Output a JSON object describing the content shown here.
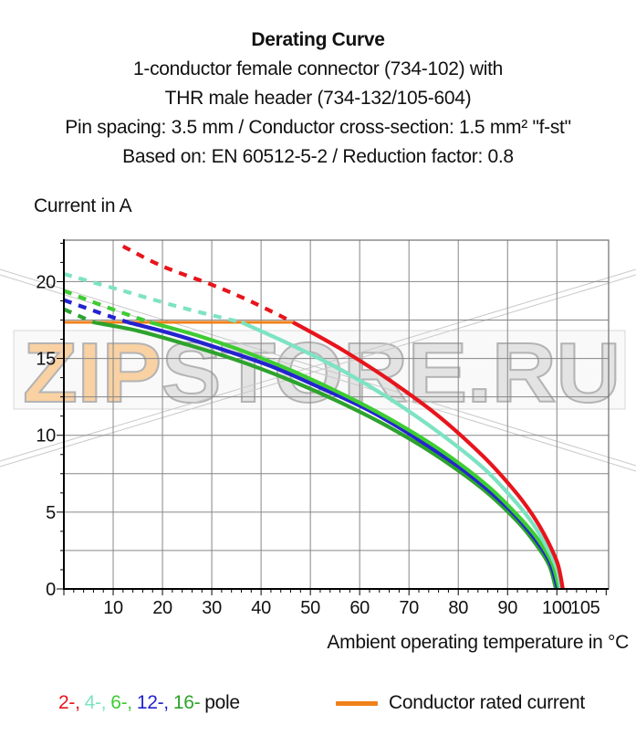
{
  "header": {
    "title": "Derating Curve",
    "lines": [
      "1-conductor female connector (734-102) with",
      "THR male header (734-132/105-604)",
      "Pin spacing: 3.5 mm / Conductor cross-section: 1.5 mm² \"f-st\"",
      "Based on: EN 60512-5-2 / Reduction factor: 0.8"
    ]
  },
  "chart": {
    "y_axis_label": "Current in A",
    "x_axis_label": "Ambient operating temperature in °C",
    "grid_color": "#868686",
    "frame_color": "#6e6e6e",
    "axis_color": "#000000"
  },
  "watermark": {
    "part1": "ZIP",
    "part2": "STORE.RU",
    "part1_fill": "#f9cf9f",
    "part2_fill": "#e2e2e2",
    "outline": "#b0b0b0",
    "box_border": "#d6d6d6",
    "hairline": "#c9c9c9"
  },
  "legend": {
    "pole_items": [
      {
        "label": "2-,",
        "color": "#e8141c"
      },
      {
        "label": "4-,",
        "color": "#7de3c3"
      },
      {
        "label": "6-,",
        "color": "#3ecc33"
      },
      {
        "label": "12-,",
        "color": "#2323cf"
      },
      {
        "label": "16-",
        "color": "#2da32d"
      }
    ],
    "pole_suffix": "pole",
    "rated_label": "Conductor rated current",
    "rated_color": "#f08119"
  },
  "chart_data": {
    "type": "line",
    "title": "Derating Curve",
    "xlabel": "Ambient operating temperature in °C",
    "ylabel": "Current in A",
    "xlim": [
      0,
      110.5
    ],
    "ylim": [
      0,
      22.7
    ],
    "x_ticks": [
      10,
      20,
      30,
      40,
      50,
      60,
      70,
      80,
      90,
      100,
      105
    ],
    "y_ticks": [
      0,
      5,
      10,
      15,
      20
    ],
    "x_gridlines": [
      10,
      20,
      30,
      40,
      50,
      60,
      70,
      80,
      90,
      100
    ],
    "y_gridlines": [
      2.5,
      5,
      7.5,
      10,
      12.5,
      15,
      17.5,
      20
    ],
    "x_minor_tick_step": 2,
    "y_minor_tick_step": 1.25,
    "grid": true,
    "legend_position": "bottom",
    "note": "dashed portion = curve above conductor rated current limit; units: x = °C, y = A",
    "series": [
      {
        "name": "16-pole",
        "color": "#2da32d",
        "dash": [
          [
            0,
            18.2
          ],
          [
            6,
            17.35
          ]
        ],
        "solid": [
          [
            6,
            17.35
          ],
          [
            15,
            16.8
          ],
          [
            25,
            15.9
          ],
          [
            35,
            14.9
          ],
          [
            45,
            13.7
          ],
          [
            55,
            12.3
          ],
          [
            65,
            10.7
          ],
          [
            75,
            8.8
          ],
          [
            85,
            6.5
          ],
          [
            92,
            4.4
          ],
          [
            96,
            2.8
          ],
          [
            98.5,
            1.5
          ],
          [
            99.8,
            0
          ]
        ]
      },
      {
        "name": "12-pole",
        "color": "#2323cf",
        "dash": [
          [
            0,
            18.8
          ],
          [
            7,
            18.0
          ],
          [
            13,
            17.35
          ]
        ],
        "solid": [
          [
            13,
            17.35
          ],
          [
            22,
            16.6
          ],
          [
            32,
            15.6
          ],
          [
            42,
            14.5
          ],
          [
            52,
            13.1
          ],
          [
            62,
            11.6
          ],
          [
            72,
            9.7
          ],
          [
            82,
            7.5
          ],
          [
            90,
            5.3
          ],
          [
            95,
            3.5
          ],
          [
            98.5,
            1.8
          ],
          [
            100.2,
            0
          ]
        ]
      },
      {
        "name": "6-pole",
        "color": "#3ecc33",
        "dash": [
          [
            0,
            19.4
          ],
          [
            9,
            18.3
          ],
          [
            17.5,
            17.35
          ]
        ],
        "solid": [
          [
            17.5,
            17.35
          ],
          [
            27,
            16.5
          ],
          [
            37,
            15.4
          ],
          [
            47,
            14.1
          ],
          [
            57,
            12.6
          ],
          [
            67,
            10.9
          ],
          [
            77,
            8.9
          ],
          [
            86,
            6.7
          ],
          [
            92,
            4.8
          ],
          [
            96,
            3.3
          ],
          [
            99,
            1.7
          ],
          [
            100.5,
            0
          ]
        ]
      },
      {
        "name": "4-pole",
        "color": "#7de3c3",
        "dash": [
          [
            0,
            20.5
          ],
          [
            12,
            19.4
          ],
          [
            24,
            18.3
          ],
          [
            36,
            17.35
          ]
        ],
        "solid": [
          [
            36,
            17.35
          ],
          [
            46,
            15.9
          ],
          [
            56,
            14.3
          ],
          [
            66,
            12.4
          ],
          [
            76,
            10.2
          ],
          [
            85,
            7.9
          ],
          [
            91,
            5.9
          ],
          [
            95,
            4.3
          ],
          [
            98,
            2.7
          ],
          [
            100,
            1.3
          ],
          [
            100.8,
            0
          ]
        ]
      },
      {
        "name": "2-pole",
        "color": "#e8141c",
        "dash": [
          [
            12,
            22.3
          ],
          [
            20,
            21.0
          ],
          [
            30,
            19.8
          ],
          [
            38,
            18.7
          ],
          [
            46.5,
            17.35
          ]
        ],
        "solid": [
          [
            46.5,
            17.35
          ],
          [
            56,
            15.65
          ],
          [
            66,
            13.6
          ],
          [
            76,
            11.25
          ],
          [
            85,
            8.65
          ],
          [
            91,
            6.55
          ],
          [
            95,
            4.85
          ],
          [
            98,
            3.2
          ],
          [
            100.2,
            1.6
          ],
          [
            101.2,
            0
          ]
        ]
      },
      {
        "name": "Conductor rated current",
        "style": "limit",
        "color": "#f08119",
        "solid": [
          [
            0,
            17.35
          ],
          [
            46.5,
            17.35
          ]
        ]
      }
    ]
  }
}
